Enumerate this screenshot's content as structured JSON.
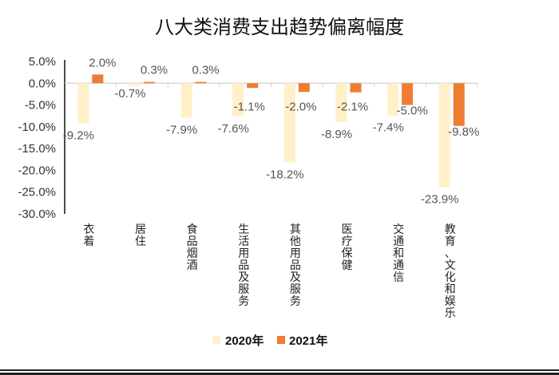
{
  "chart_data": {
    "type": "bar",
    "title": "八大类消费支出趋势偏离幅度",
    "categories": [
      "衣着",
      "居住",
      "食品烟酒",
      "生活用品及服务",
      "其他用品及服务",
      "医疗保健",
      "交通和通信",
      "教育、文化和娱乐"
    ],
    "series": [
      {
        "name": "2020年",
        "color": "#FFF0C8",
        "values": [
          -9.2,
          -0.7,
          -7.9,
          -7.6,
          -18.2,
          -8.9,
          -7.4,
          -23.9
        ]
      },
      {
        "name": "2021年",
        "color": "#ED7D31",
        "values": [
          2.0,
          0.3,
          0.3,
          -1.1,
          -2.0,
          -2.1,
          -5.0,
          -9.8
        ]
      }
    ],
    "ylim": [
      -30,
      5
    ],
    "yticks": [
      "5.0%",
      "0.0%",
      "-5.0%",
      "-10.0%",
      "-15.0%",
      "-20.0%",
      "-25.0%",
      "-30.0%"
    ],
    "data_labels": [
      [
        "-9.2%",
        "-0.7%",
        "-7.9%",
        "-7.6%",
        "-18.2%",
        "-8.9%",
        "-7.4%",
        "-23.9%"
      ],
      [
        "2.0%",
        "0.3%",
        "0.3%",
        "-1.1%",
        "-2.0%",
        "-2.1%",
        "-5.0%",
        "-9.8%"
      ]
    ],
    "grid": false,
    "legend": "bottom"
  }
}
